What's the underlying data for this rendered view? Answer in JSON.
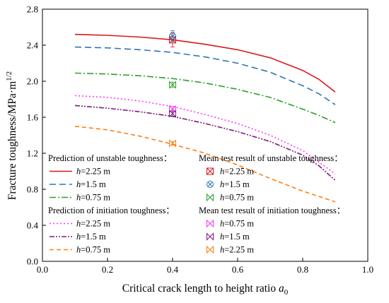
{
  "chart_data": {
    "type": "line",
    "xlabel": "Critical crack length to height ratio",
    "xlabel_symbol": "a",
    "xlabel_sub": "0",
    "ylabel": "Fracture toughness/MPa·m",
    "ylabel_sup": "1/2",
    "xlim": [
      0.0,
      1.0
    ],
    "ylim": [
      0.0,
      2.8
    ],
    "xticks": [
      0.0,
      0.2,
      0.4,
      0.6,
      0.8,
      1.0
    ],
    "yticks": [
      0.0,
      0.4,
      0.8,
      1.2,
      1.6,
      2.0,
      2.4,
      2.8
    ],
    "grid": false,
    "legend_groups": [
      {
        "title": "Prediction of unstable toughness：",
        "kind": "line",
        "entries": [
          {
            "series": 0,
            "label": "=2.25 m"
          },
          {
            "series": 1,
            "label": "=1.5 m"
          },
          {
            "series": 2,
            "label": "=0.75 m"
          }
        ]
      },
      {
        "title": "Prediction of initiation toughness：",
        "kind": "line",
        "entries": [
          {
            "series": 3,
            "label": "=2.25 m"
          },
          {
            "series": 4,
            "label": "=1.5 m"
          },
          {
            "series": 5,
            "label": "=0.75 m"
          }
        ]
      },
      {
        "title": "Mean test result of unstable toughness：",
        "kind": "marker",
        "entries": [
          {
            "marker": 0,
            "label": "=2.25 m"
          },
          {
            "marker": 1,
            "label": "=1.5 m"
          },
          {
            "marker": 2,
            "label": "=0.75 m"
          }
        ]
      },
      {
        "title": "Mean test result of initiation toughness：",
        "kind": "marker",
        "entries": [
          {
            "marker": 3,
            "label": "=0.75 m"
          },
          {
            "marker": 4,
            "label": "=1.5 m"
          },
          {
            "marker": 5,
            "label": "=2.25 m"
          }
        ]
      }
    ],
    "legend_symbol": "h",
    "series": [
      {
        "name": "h=2.25 m",
        "color": "#d7191c",
        "dash": "",
        "x": [
          0.1,
          0.2,
          0.3,
          0.4,
          0.5,
          0.6,
          0.7,
          0.8,
          0.85,
          0.9
        ],
        "y": [
          2.52,
          2.51,
          2.49,
          2.46,
          2.41,
          2.35,
          2.26,
          2.12,
          2.02,
          1.88
        ]
      },
      {
        "name": "h=1.5 m",
        "color": "#2e75b6",
        "dash": "9,5",
        "x": [
          0.1,
          0.2,
          0.3,
          0.4,
          0.5,
          0.6,
          0.7,
          0.8,
          0.85,
          0.9
        ],
        "y": [
          2.38,
          2.37,
          2.35,
          2.32,
          2.27,
          2.2,
          2.1,
          1.95,
          1.86,
          1.74
        ]
      },
      {
        "name": "h=0.75 m",
        "color": "#2ca02c",
        "dash": "9,3,2,3",
        "x": [
          0.1,
          0.2,
          0.3,
          0.4,
          0.5,
          0.6,
          0.7,
          0.8,
          0.85,
          0.9
        ],
        "y": [
          2.09,
          2.08,
          2.06,
          2.03,
          1.98,
          1.91,
          1.82,
          1.69,
          1.62,
          1.54
        ]
      },
      {
        "name": "h=2.25 m",
        "color": "#ff33ff",
        "dash": "2,3",
        "x": [
          0.1,
          0.2,
          0.3,
          0.4,
          0.5,
          0.6,
          0.7,
          0.8,
          0.85,
          0.9
        ],
        "y": [
          1.84,
          1.82,
          1.78,
          1.72,
          1.63,
          1.53,
          1.4,
          1.23,
          1.1,
          0.97
        ]
      },
      {
        "name": "h=1.5 m",
        "color": "#7b1a7b",
        "dash": "7,2,2,2,2,2",
        "x": [
          0.1,
          0.2,
          0.3,
          0.4,
          0.5,
          0.6,
          0.7,
          0.8,
          0.85,
          0.9
        ],
        "y": [
          1.73,
          1.7,
          1.66,
          1.61,
          1.53,
          1.44,
          1.33,
          1.18,
          1.06,
          0.9
        ]
      },
      {
        "name": "h=0.75 m",
        "color": "#ff7f0e",
        "dash": "6,4",
        "x": [
          0.1,
          0.2,
          0.3,
          0.4,
          0.5,
          0.6,
          0.7,
          0.8,
          0.85,
          0.9
        ],
        "y": [
          1.5,
          1.46,
          1.39,
          1.3,
          1.2,
          1.07,
          0.92,
          0.78,
          0.72,
          0.66
        ]
      }
    ],
    "markers": [
      {
        "name": "h=2.25 m",
        "color": "#d7191c",
        "shape": "boxx",
        "x": 0.4,
        "y": 2.46,
        "err": 0.08
      },
      {
        "name": "h=1.5 m",
        "color": "#2e75b6",
        "shape": "circlex",
        "x": 0.4,
        "y": 2.5,
        "err": 0.06
      },
      {
        "name": "h=0.75 m",
        "color": "#2ca02c",
        "shape": "bowtie",
        "x": 0.4,
        "y": 1.96,
        "err": 0.03
      },
      {
        "name": "h=0.75 m",
        "color": "#ff33ff",
        "shape": "bowtie",
        "x": 0.4,
        "y": 1.69,
        "err": 0.03
      },
      {
        "name": "h=1.5 m",
        "color": "#7b1a7b",
        "shape": "bowtie",
        "x": 0.4,
        "y": 1.64,
        "err": 0.03
      },
      {
        "name": "h=2.25 m",
        "color": "#ff7f0e",
        "shape": "bowtie",
        "x": 0.4,
        "y": 1.31,
        "err": 0.02
      }
    ]
  }
}
